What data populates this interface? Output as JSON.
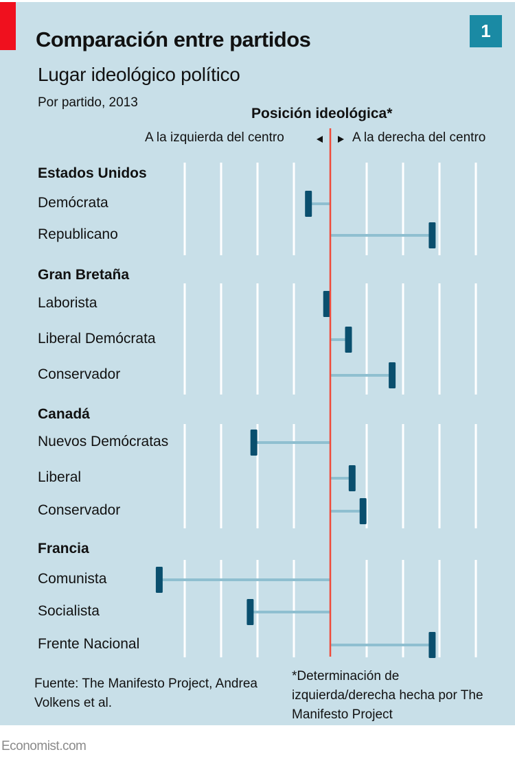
{
  "header": {
    "badge": "1",
    "title": "Comparación entre partidos",
    "subtitle": "Lugar ideológico político",
    "period": "Por partido, 2013"
  },
  "axis": {
    "title": "Posición ideológica*",
    "left_label": "A la izquierda del centro",
    "right_label": "A la derecha del centro"
  },
  "footer": {
    "source": "Fuente: The Manifesto Project, Andrea Volkens et al.",
    "note": "*Determinación de izquierda/derecha hecha por The Manifesto Project",
    "brand": "Economist.com"
  },
  "colors": {
    "background": "#c8dfe8",
    "center_line": "#f04a3a",
    "marker": "#0a4f6e",
    "connector": "#8fbfd0",
    "gridline": "#ffffff",
    "accent": "#f0101e",
    "badge": "#1a8aa4"
  },
  "chart_data": {
    "type": "dot-range",
    "title": "Comparación entre partidos",
    "subtitle": "Lugar ideológico político — Por partido, 2013",
    "xlabel": "Posición ideológica*",
    "xlim": [
      -50,
      40
    ],
    "center": 0,
    "gridlines_every": 10,
    "grid": true,
    "groups": [
      {
        "name": "Estados Unidos",
        "parties": [
          {
            "name": "Demócrata",
            "value": -6
          },
          {
            "name": "Republicano",
            "value": 28
          }
        ]
      },
      {
        "name": "Gran Bretaña",
        "parties": [
          {
            "name": "Laborista",
            "value": -1
          },
          {
            "name": "Liberal Demócrata",
            "value": 5
          },
          {
            "name": "Conservador",
            "value": 17
          }
        ]
      },
      {
        "name": "Canadá",
        "parties": [
          {
            "name": "Nuevos Demócratas",
            "value": -21
          },
          {
            "name": "Liberal",
            "value": 6
          },
          {
            "name": "Conservador",
            "value": 9
          }
        ]
      },
      {
        "name": "Francia",
        "parties": [
          {
            "name": "Comunista",
            "value": -47
          },
          {
            "name": "Socialista",
            "value": -22
          },
          {
            "name": "Frente Nacional",
            "value": 28
          }
        ]
      }
    ]
  }
}
